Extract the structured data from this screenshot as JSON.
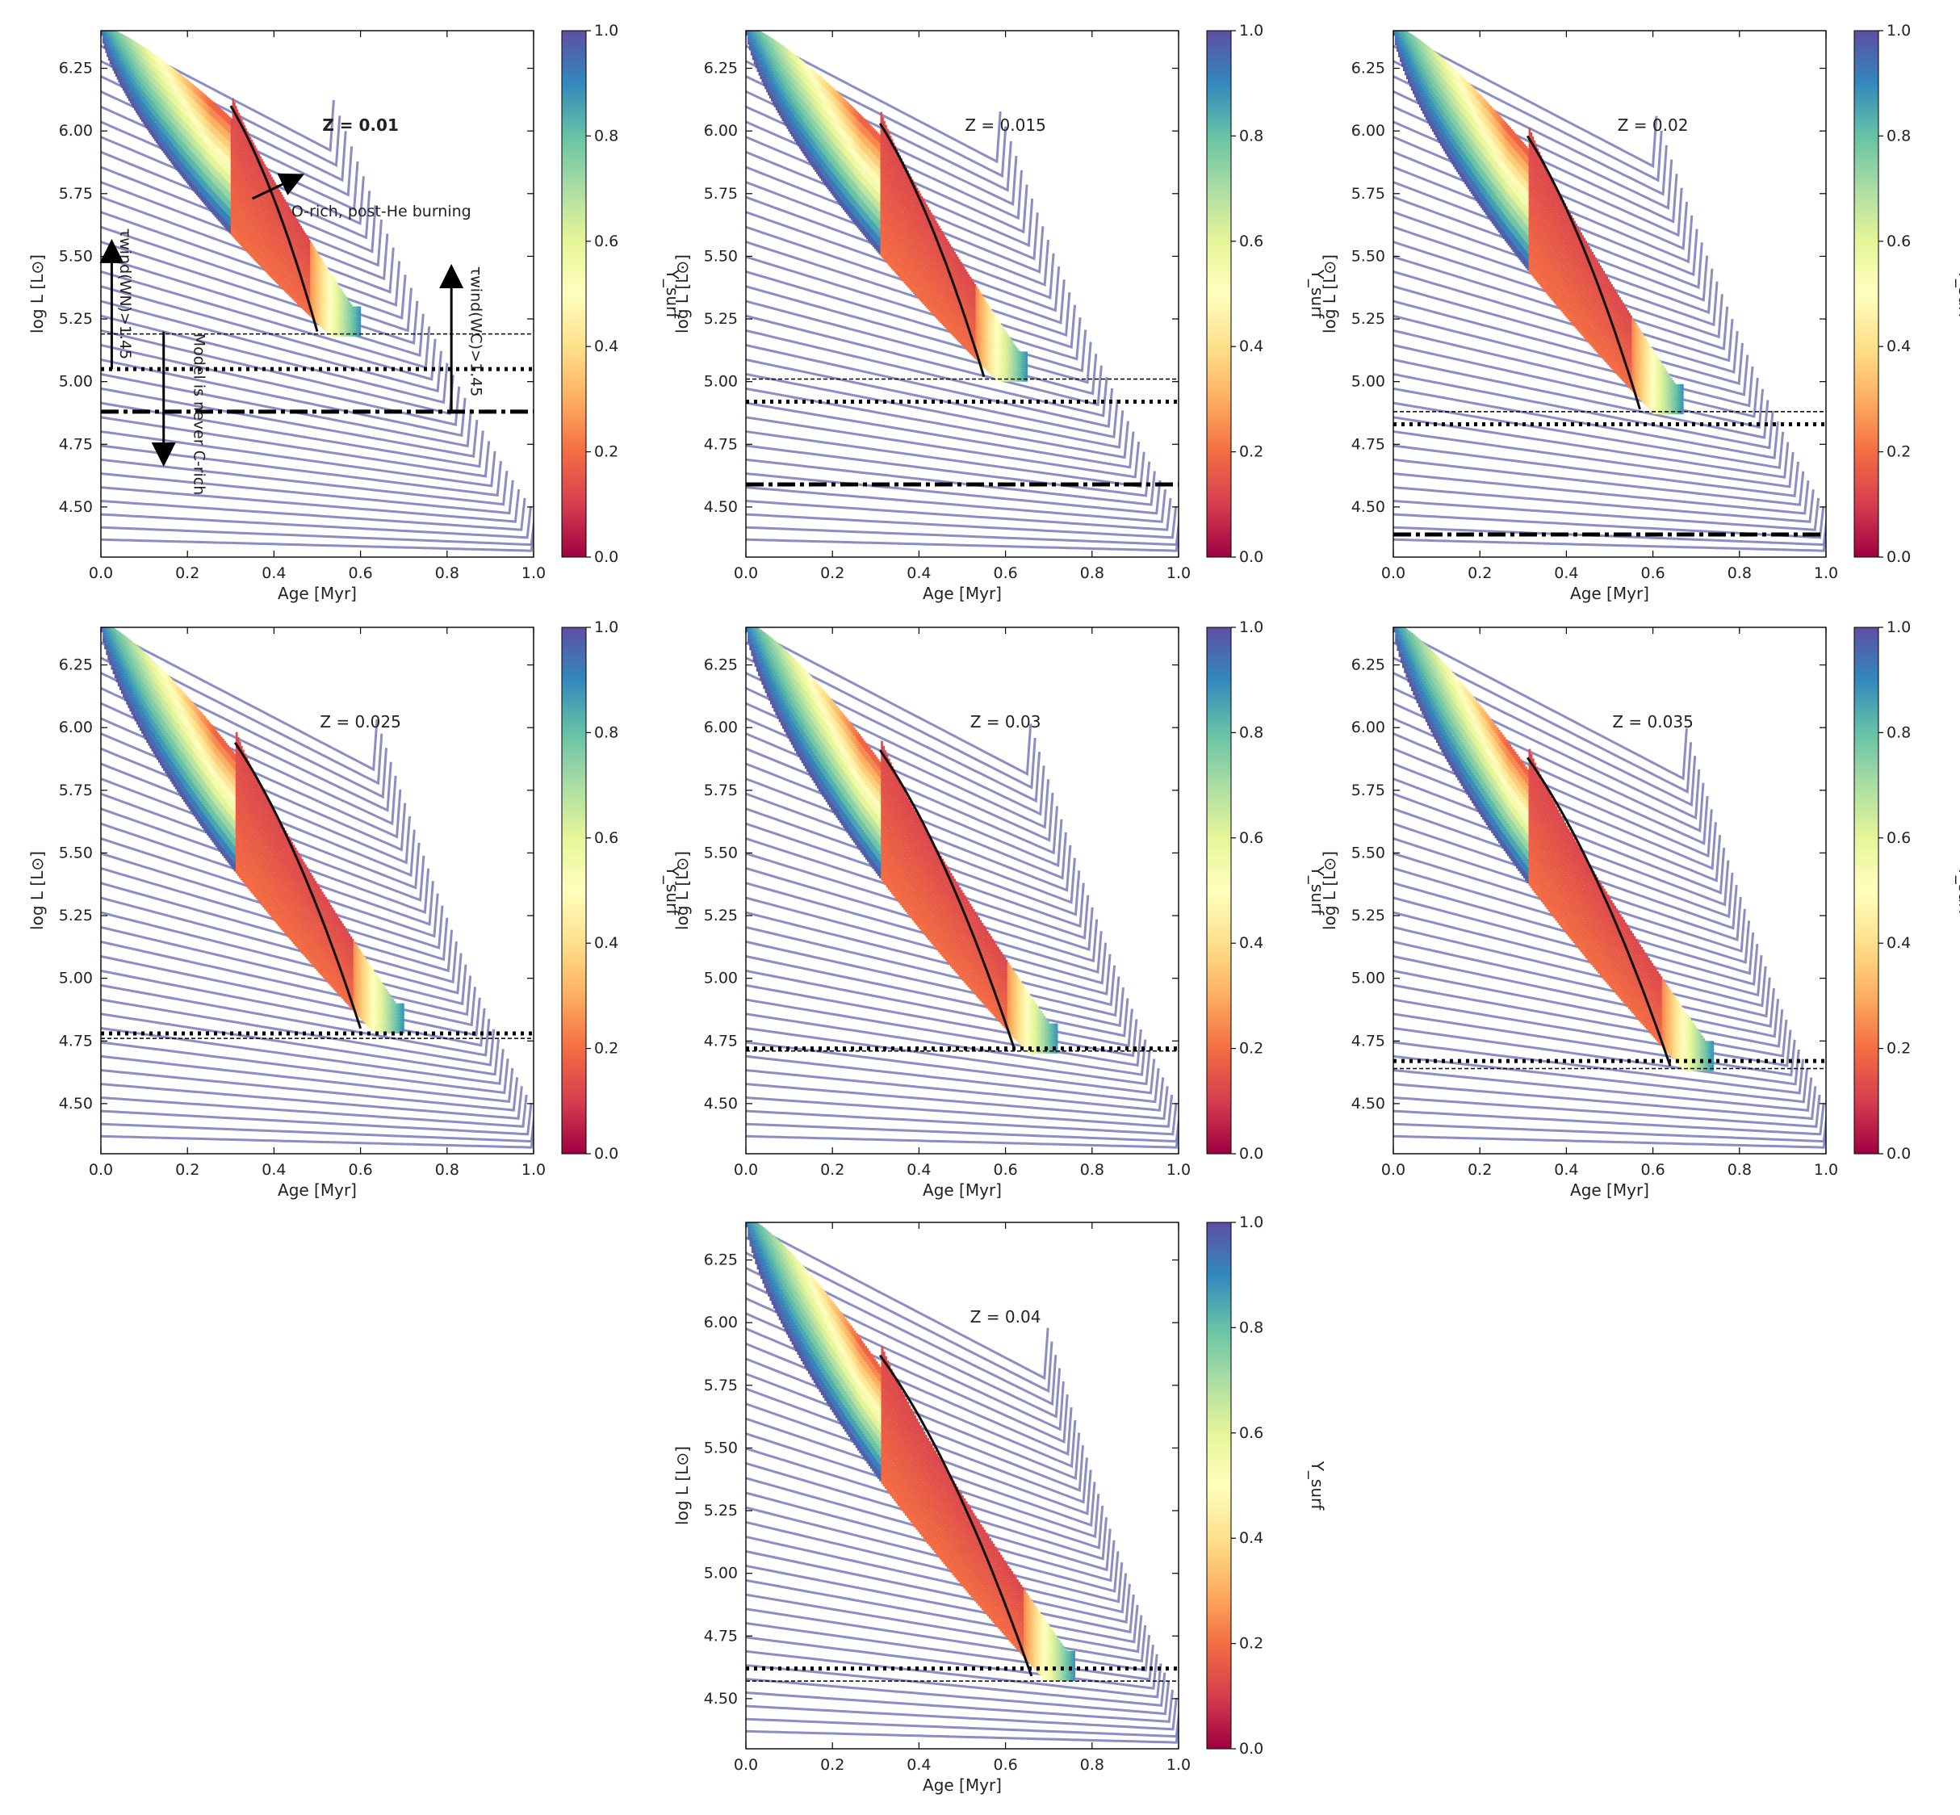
{
  "figure": {
    "xlabel": "Age [Myr]",
    "ylabel": "log L [L⊙]",
    "colorbar_label": "Y_surf",
    "colorbar_ticks": [
      "0.0",
      "0.2",
      "0.4",
      "0.6",
      "0.8",
      "1.0"
    ],
    "colorbar_colors": [
      "#9e0142",
      "#d53e4f",
      "#f46d43",
      "#fdae61",
      "#fee08b",
      "#ffffbf",
      "#e6f598",
      "#abdda4",
      "#66c2a5",
      "#3288bd",
      "#5e4fa2"
    ]
  },
  "chart_data": [
    {
      "type": "line",
      "title": "Z = 0.01",
      "title_bold": true,
      "xlabel": "Age [Myr]",
      "ylabel": "log L [L⊙]",
      "xlim": [
        0.0,
        1.0
      ],
      "ylim": [
        4.3,
        6.4
      ],
      "xticks": [
        "0.0",
        "0.2",
        "0.4",
        "0.6",
        "0.8",
        "1.0"
      ],
      "yticks": [
        "4.50",
        "4.75",
        "5.00",
        "5.25",
        "5.50",
        "5.75",
        "6.00",
        "6.25"
      ],
      "colorbar": "Y_surf",
      "series": [
        {
          "name": "thin dashed threshold",
          "value": 5.19
        },
        {
          "name": "dotted threshold",
          "value": 5.05
        },
        {
          "name": "dash-dot threshold",
          "value": 4.88
        },
        {
          "name": "black track",
          "x": [
            0.3,
            0.5
          ],
          "y": [
            6.1,
            5.2
          ]
        }
      ],
      "annotations": [
        "O-rich, post-He burning",
        "τwind(WN)>1.45",
        "Model is never C-rich",
        "τwind(WC)>1.45"
      ]
    },
    {
      "type": "line",
      "title": "Z = 0.015",
      "xlabel": "Age [Myr]",
      "ylabel": "log L [L⊙]",
      "xlim": [
        0.0,
        1.0
      ],
      "ylim": [
        4.3,
        6.4
      ],
      "xticks": [
        "0.0",
        "0.2",
        "0.4",
        "0.6",
        "0.8",
        "1.0"
      ],
      "yticks": [
        "4.50",
        "4.75",
        "5.00",
        "5.25",
        "5.50",
        "5.75",
        "6.00",
        "6.25"
      ],
      "colorbar": "Y_surf",
      "series": [
        {
          "name": "thin dashed threshold",
          "value": 5.01
        },
        {
          "name": "dotted threshold",
          "value": 4.92
        },
        {
          "name": "dash-dot threshold",
          "value": 4.59
        },
        {
          "name": "black track",
          "x": [
            0.31,
            0.55
          ],
          "y": [
            6.03,
            5.02
          ]
        }
      ]
    },
    {
      "type": "line",
      "title": "Z = 0.02",
      "xlabel": "Age [Myr]",
      "ylabel": "log L [L⊙]",
      "xlim": [
        0.0,
        1.0
      ],
      "ylim": [
        4.3,
        6.4
      ],
      "xticks": [
        "0.0",
        "0.2",
        "0.4",
        "0.6",
        "0.8",
        "1.0"
      ],
      "yticks": [
        "4.50",
        "4.75",
        "5.00",
        "5.25",
        "5.50",
        "5.75",
        "6.00",
        "6.25"
      ],
      "colorbar": "Y_surf",
      "series": [
        {
          "name": "thin dashed threshold",
          "value": 4.88
        },
        {
          "name": "dotted threshold",
          "value": 4.83
        },
        {
          "name": "dash-dot threshold",
          "value": 4.39
        },
        {
          "name": "black track",
          "x": [
            0.31,
            0.57
          ],
          "y": [
            5.98,
            4.89
          ]
        }
      ]
    },
    {
      "type": "line",
      "title": "Z = 0.025",
      "xlabel": "Age [Myr]",
      "ylabel": "log L [L⊙]",
      "xlim": [
        0.0,
        1.0
      ],
      "ylim": [
        4.3,
        6.4
      ],
      "xticks": [
        "0.0",
        "0.2",
        "0.4",
        "0.6",
        "0.8",
        "1.0"
      ],
      "yticks": [
        "4.50",
        "4.75",
        "5.00",
        "5.25",
        "5.50",
        "5.75",
        "6.00",
        "6.25"
      ],
      "colorbar": "Y_surf",
      "series": [
        {
          "name": "thin dashed threshold",
          "value": 4.76
        },
        {
          "name": "dotted threshold",
          "value": 4.78
        },
        {
          "name": "black track",
          "x": [
            0.31,
            0.6
          ],
          "y": [
            5.94,
            4.8
          ]
        }
      ]
    },
    {
      "type": "line",
      "title": "Z = 0.03",
      "xlabel": "Age [Myr]",
      "ylabel": "log L [L⊙]",
      "xlim": [
        0.0,
        1.0
      ],
      "ylim": [
        4.3,
        6.4
      ],
      "xticks": [
        "0.0",
        "0.2",
        "0.4",
        "0.6",
        "0.8",
        "1.0"
      ],
      "yticks": [
        "4.50",
        "4.75",
        "5.00",
        "5.25",
        "5.50",
        "5.75",
        "6.00",
        "6.25"
      ],
      "colorbar": "Y_surf",
      "series": [
        {
          "name": "thin dashed threshold",
          "value": 4.71
        },
        {
          "name": "dotted threshold",
          "value": 4.72
        },
        {
          "name": "black track",
          "x": [
            0.31,
            0.62
          ],
          "y": [
            5.91,
            4.72
          ]
        }
      ]
    },
    {
      "type": "line",
      "title": "Z = 0.035",
      "xlabel": "Age [Myr]",
      "ylabel": "log L [L⊙]",
      "xlim": [
        0.0,
        1.0
      ],
      "ylim": [
        4.3,
        6.4
      ],
      "xticks": [
        "0.0",
        "0.2",
        "0.4",
        "0.6",
        "0.8",
        "1.0"
      ],
      "yticks": [
        "4.50",
        "4.75",
        "5.00",
        "5.25",
        "5.50",
        "5.75",
        "6.00",
        "6.25"
      ],
      "colorbar": "Y_surf",
      "series": [
        {
          "name": "thin dashed threshold",
          "value": 4.64
        },
        {
          "name": "dotted threshold",
          "value": 4.67
        },
        {
          "name": "black track",
          "x": [
            0.31,
            0.64
          ],
          "y": [
            5.88,
            4.65
          ]
        }
      ]
    },
    {
      "type": "line",
      "title": "Z = 0.04",
      "xlabel": "Age [Myr]",
      "ylabel": "log L [L⊙]",
      "xlim": [
        0.0,
        1.0
      ],
      "ylim": [
        4.3,
        6.4
      ],
      "xticks": [
        "0.0",
        "0.2",
        "0.4",
        "0.6",
        "0.8",
        "1.0"
      ],
      "yticks": [
        "4.50",
        "4.75",
        "5.00",
        "5.25",
        "5.50",
        "5.75",
        "6.00",
        "6.25"
      ],
      "colorbar": "Y_surf",
      "series": [
        {
          "name": "thin dashed threshold",
          "value": 4.57
        },
        {
          "name": "dotted threshold",
          "value": 4.62
        },
        {
          "name": "black track",
          "x": [
            0.31,
            0.66
          ],
          "y": [
            5.87,
            4.59
          ]
        }
      ]
    }
  ]
}
